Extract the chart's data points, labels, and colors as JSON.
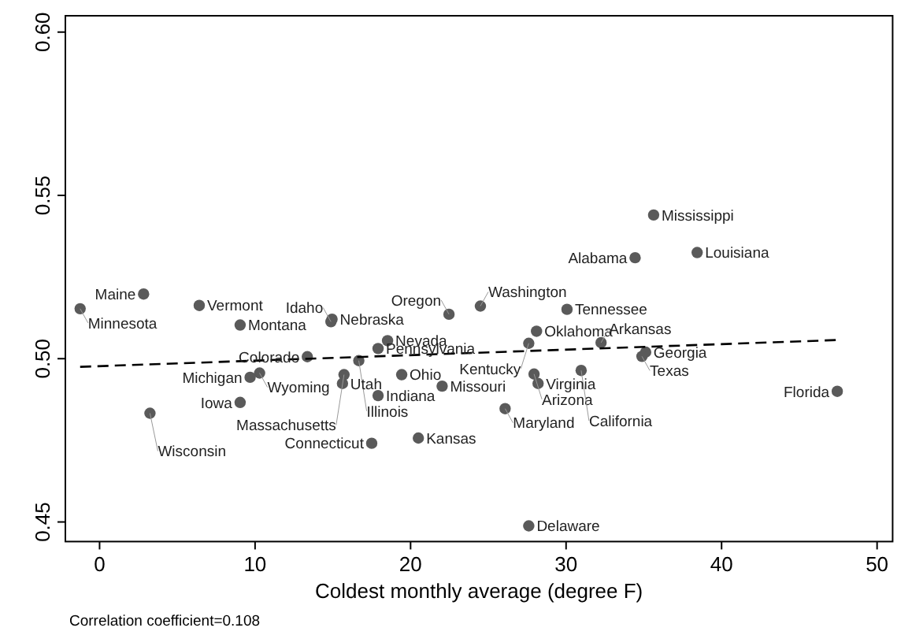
{
  "chart_data": {
    "type": "scatter",
    "xlabel": "Coldest monthly average (degree F)",
    "xlim": [
      -2.2,
      51
    ],
    "xticks": [
      0,
      10,
      20,
      30,
      40,
      50
    ],
    "ylim": [
      0.444,
      0.605
    ],
    "yticks": [
      {
        "value": 0.45,
        "label": "0.45"
      },
      {
        "value": 0.5,
        "label": "0.50"
      },
      {
        "value": 0.55,
        "label": "0.55"
      },
      {
        "value": 0.6,
        "label": "0.60"
      }
    ],
    "grid": false,
    "series": [
      {
        "type": "scatter",
        "color": "#5a5a5a",
        "marker": "circle",
        "x": [
          -1.25,
          2.83,
          6.41,
          9.04,
          14.95,
          14.88,
          13.36,
          16.67,
          18.52,
          17.91,
          10.29,
          9.68,
          15.72,
          15.62,
          19.43,
          17.91,
          9.04,
          3.24,
          17.5,
          20.5,
          22.03,
          35.63,
          34.44,
          38.43,
          22.47,
          24.49,
          30.06,
          28.1,
          27.6,
          32.25,
          35.12,
          34.88,
          27.94,
          30.97,
          28.2,
          26.08,
          27.6,
          47.44
        ],
        "values": [
          0.5153,
          0.5198,
          0.5163,
          0.5103,
          0.5121,
          0.5113,
          0.5006,
          0.4994,
          0.5055,
          0.5031,
          0.4956,
          0.4943,
          0.4951,
          0.4924,
          0.4951,
          0.4887,
          0.4866,
          0.4833,
          0.4741,
          0.4757,
          0.4916,
          0.544,
          0.5309,
          0.5325,
          0.5136,
          0.5161,
          0.5151,
          0.5084,
          0.5047,
          0.5049,
          0.502,
          0.5007,
          0.4953,
          0.4964,
          0.4924,
          0.4847,
          0.4488,
          0.49
        ]
      },
      {
        "type": "line",
        "color": "#000000",
        "line_style": "dashed",
        "marker": "none",
        "x": [
          -1.25,
          47.4
        ],
        "values": [
          0.4975,
          0.5057
        ]
      }
    ],
    "annotations": [
      {
        "text": "Minnesota",
        "x": -1.25,
        "y": 0.5153
      },
      {
        "text": "Maine",
        "x": 2.83,
        "y": 0.5198
      },
      {
        "text": "Vermont",
        "x": 6.41,
        "y": 0.5163
      },
      {
        "text": "Montana",
        "x": 9.04,
        "y": 0.5103
      },
      {
        "text": "Nebraska",
        "x": 14.95,
        "y": 0.5121
      },
      {
        "text": "Idaho",
        "x": 14.88,
        "y": 0.5113
      },
      {
        "text": "Colorado",
        "x": 13.36,
        "y": 0.5006
      },
      {
        "text": "Illinois",
        "x": 16.67,
        "y": 0.4994
      },
      {
        "text": "Nevada",
        "x": 18.52,
        "y": 0.5055
      },
      {
        "text": "Pennsylvania",
        "x": 17.91,
        "y": 0.5031
      },
      {
        "text": "Wyoming",
        "x": 10.29,
        "y": 0.4956
      },
      {
        "text": "Michigan",
        "x": 9.68,
        "y": 0.4943
      },
      {
        "text": "Massachusetts",
        "x": 15.72,
        "y": 0.4951
      },
      {
        "text": "Utah",
        "x": 15.62,
        "y": 0.4924
      },
      {
        "text": "Ohio",
        "x": 19.43,
        "y": 0.4951
      },
      {
        "text": "Indiana",
        "x": 17.91,
        "y": 0.4887
      },
      {
        "text": "Iowa",
        "x": 9.04,
        "y": 0.4866
      },
      {
        "text": "Wisconsin",
        "x": 3.24,
        "y": 0.4833
      },
      {
        "text": "Connecticut",
        "x": 17.5,
        "y": 0.4741
      },
      {
        "text": "Kansas",
        "x": 20.5,
        "y": 0.4757
      },
      {
        "text": "Missouri",
        "x": 22.03,
        "y": 0.4916
      },
      {
        "text": "Mississippi",
        "x": 35.63,
        "y": 0.544
      },
      {
        "text": "Alabama",
        "x": 34.44,
        "y": 0.5309
      },
      {
        "text": "Louisiana",
        "x": 38.43,
        "y": 0.5325
      },
      {
        "text": "Oregon",
        "x": 22.47,
        "y": 0.5136
      },
      {
        "text": "Washington",
        "x": 24.49,
        "y": 0.5161
      },
      {
        "text": "Tennessee",
        "x": 30.06,
        "y": 0.5151
      },
      {
        "text": "Oklahoma",
        "x": 28.1,
        "y": 0.5084
      },
      {
        "text": "Kentucky",
        "x": 27.6,
        "y": 0.5047
      },
      {
        "text": "Arkansas",
        "x": 32.25,
        "y": 0.5049
      },
      {
        "text": "Georgia",
        "x": 35.12,
        "y": 0.502
      },
      {
        "text": "Texas",
        "x": 34.88,
        "y": 0.5007
      },
      {
        "text": "Arizona",
        "x": 27.94,
        "y": 0.4953
      },
      {
        "text": "California",
        "x": 30.97,
        "y": 0.4964
      },
      {
        "text": "Virginia",
        "x": 28.2,
        "y": 0.4924
      },
      {
        "text": "Maryland",
        "x": 26.08,
        "y": 0.4847
      },
      {
        "text": "Delaware",
        "x": 27.6,
        "y": 0.4488
      },
      {
        "text": "Florida",
        "x": 47.44,
        "y": 0.49
      },
      "Correlation coefficient=0.108"
    ]
  }
}
